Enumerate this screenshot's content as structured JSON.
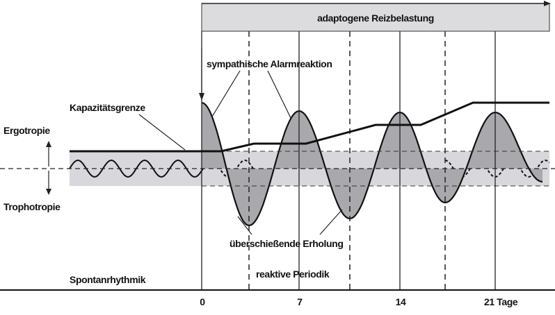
{
  "banner": "adaptogene Reizbelastung",
  "labels": {
    "capacity": "Kapazitätsgrenze",
    "alarm": "sympathische Alarmreaktion",
    "ergotropy": "Ergotropie",
    "trophotropy": "Trophotropie",
    "recovery": "überschießende Erholung",
    "spontaneous": "Spontanrhythmik",
    "reactive": "reaktive Periodik"
  },
  "axis": {
    "ticks": [
      "0",
      "7",
      "14",
      "21 Tage"
    ]
  }
}
